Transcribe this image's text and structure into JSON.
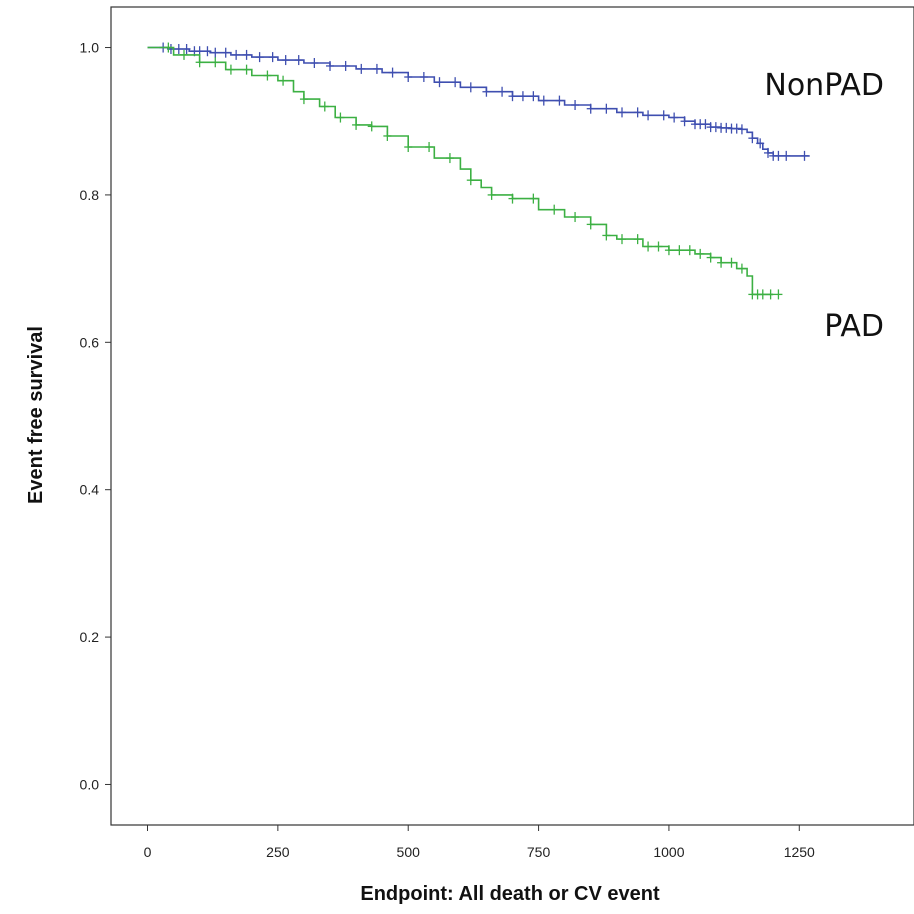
{
  "chart_data": {
    "type": "line",
    "subtype": "kaplan-meier",
    "title": "",
    "xlabel": "Endpoint: All death or CV event",
    "ylabel": "Event free survival",
    "xlim": [
      -70,
      1470
    ],
    "ylim": [
      -0.055,
      1.055
    ],
    "xticks": [
      0,
      250,
      500,
      750,
      1000,
      1250
    ],
    "xtick_labels": [
      "0",
      "250",
      "500",
      "750",
      "1000",
      "1250"
    ],
    "yticks": [
      0.0,
      0.2,
      0.4,
      0.6,
      0.8,
      1.0
    ],
    "ytick_labels": [
      "0.0",
      "0.2",
      "0.4",
      "0.6",
      "0.8",
      "1.0"
    ],
    "grid": false,
    "legend": "none",
    "series": [
      {
        "name": "NonPAD",
        "color": "#3f4fb0",
        "x": [
          0,
          40,
          80,
          120,
          160,
          200,
          250,
          300,
          350,
          400,
          450,
          500,
          550,
          600,
          650,
          700,
          750,
          800,
          850,
          900,
          950,
          1000,
          1030,
          1050,
          1080,
          1100,
          1120,
          1140,
          1150,
          1160,
          1170,
          1180,
          1190,
          1200,
          1270
        ],
        "y": [
          1.0,
          0.998,
          0.995,
          0.993,
          0.99,
          0.987,
          0.983,
          0.979,
          0.975,
          0.971,
          0.966,
          0.96,
          0.953,
          0.946,
          0.94,
          0.934,
          0.928,
          0.922,
          0.917,
          0.912,
          0.908,
          0.905,
          0.9,
          0.896,
          0.892,
          0.891,
          0.89,
          0.889,
          0.885,
          0.877,
          0.87,
          0.862,
          0.857,
          0.853,
          0.853
        ],
        "censor_x": [
          30,
          45,
          60,
          75,
          90,
          100,
          115,
          130,
          150,
          170,
          190,
          215,
          240,
          265,
          290,
          320,
          350,
          380,
          410,
          440,
          470,
          500,
          530,
          560,
          590,
          620,
          650,
          680,
          700,
          720,
          740,
          760,
          790,
          820,
          850,
          880,
          910,
          940,
          960,
          990,
          1010,
          1030,
          1050,
          1060,
          1070,
          1080,
          1090,
          1100,
          1110,
          1120,
          1130,
          1140,
          1160,
          1175,
          1190,
          1200,
          1210,
          1225,
          1260
        ]
      },
      {
        "name": "PAD",
        "color": "#3cb043",
        "x": [
          0,
          50,
          100,
          150,
          200,
          250,
          280,
          300,
          330,
          360,
          400,
          430,
          460,
          500,
          550,
          600,
          620,
          640,
          660,
          700,
          750,
          800,
          850,
          880,
          900,
          950,
          1000,
          1050,
          1080,
          1100,
          1130,
          1150,
          1160,
          1200
        ],
        "y": [
          1.0,
          0.99,
          0.98,
          0.97,
          0.962,
          0.955,
          0.94,
          0.93,
          0.92,
          0.905,
          0.895,
          0.893,
          0.88,
          0.865,
          0.85,
          0.835,
          0.82,
          0.81,
          0.8,
          0.795,
          0.78,
          0.77,
          0.76,
          0.745,
          0.74,
          0.73,
          0.725,
          0.72,
          0.715,
          0.708,
          0.7,
          0.69,
          0.665,
          0.665
        ],
        "censor_x": [
          40,
          70,
          100,
          130,
          160,
          190,
          230,
          260,
          300,
          340,
          370,
          400,
          430,
          460,
          500,
          540,
          580,
          620,
          660,
          700,
          740,
          780,
          820,
          850,
          880,
          910,
          940,
          960,
          980,
          1000,
          1020,
          1040,
          1060,
          1080,
          1100,
          1120,
          1140,
          1160,
          1170,
          1180,
          1195,
          1210
        ]
      }
    ],
    "annotations": [
      {
        "text": "NonPAD"
      },
      {
        "text": "PAD"
      }
    ]
  }
}
